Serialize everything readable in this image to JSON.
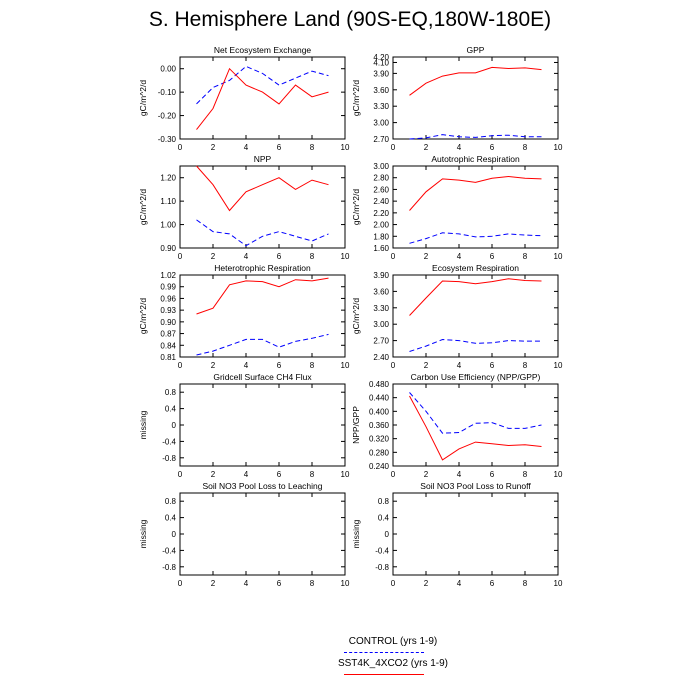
{
  "title": "S. Hemisphere Land (90S-EQ,180W-180E)",
  "legend": {
    "control": "CONTROL (yrs 1-9)",
    "sst4k": "SST4K_4XCO2 (yrs 1-9)"
  },
  "colors": {
    "control": "#0000ff",
    "sst4k": "#ff0000"
  },
  "chart_data": [
    {
      "type": "line",
      "title": "Net Ecosystem Exchange",
      "ylabel": "gC/m^2/d",
      "xlim": [
        0,
        10
      ],
      "xticks": [
        "0",
        "2",
        "4",
        "6",
        "8",
        "10"
      ],
      "ylim": [
        -0.3,
        0.05
      ],
      "yticks": [
        "0.00",
        "-0.10",
        "-0.20",
        "-0.30"
      ],
      "x": [
        1,
        2,
        3,
        4,
        5,
        6,
        7,
        8,
        9
      ],
      "series": [
        {
          "name": "CONTROL (yrs 1-9)",
          "values": [
            -0.15,
            -0.08,
            -0.05,
            0.01,
            -0.02,
            -0.07,
            -0.04,
            -0.01,
            -0.03
          ]
        },
        {
          "name": "SST4K_4XCO2 (yrs 1-9)",
          "values": [
            -0.26,
            -0.17,
            0.0,
            -0.07,
            -0.1,
            -0.15,
            -0.07,
            -0.12,
            -0.1
          ]
        }
      ]
    },
    {
      "type": "line",
      "title": "GPP",
      "ylabel": "gC/m^2/d",
      "xlim": [
        0,
        10
      ],
      "xticks": [
        "0",
        "2",
        "4",
        "6",
        "8",
        "10"
      ],
      "ylim": [
        2.7,
        4.2
      ],
      "yticks": [
        "4.20",
        "4.10",
        "3.90",
        "3.60",
        "3.30",
        "3.00",
        "2.70"
      ],
      "x": [
        1,
        2,
        3,
        4,
        5,
        6,
        7,
        8,
        9
      ],
      "series": [
        {
          "name": "CONTROL (yrs 1-9)",
          "values": [
            2.7,
            2.72,
            2.78,
            2.74,
            2.73,
            2.76,
            2.77,
            2.74,
            2.74
          ]
        },
        {
          "name": "SST4K_4XCO2 (yrs 1-9)",
          "values": [
            3.5,
            3.72,
            3.85,
            3.91,
            3.91,
            4.01,
            3.99,
            4.0,
            3.97
          ]
        }
      ]
    },
    {
      "type": "line",
      "title": "NPP",
      "ylabel": "gC/m^2/d",
      "xlim": [
        0,
        10
      ],
      "xticks": [
        "0",
        "2",
        "4",
        "6",
        "8",
        "10"
      ],
      "ylim": [
        0.9,
        1.25
      ],
      "yticks": [
        "1.20",
        "1.10",
        "1.00",
        "0.90"
      ],
      "x": [
        1,
        2,
        3,
        4,
        5,
        6,
        7,
        8,
        9
      ],
      "series": [
        {
          "name": "CONTROL (yrs 1-9)",
          "values": [
            1.02,
            0.97,
            0.96,
            0.91,
            0.95,
            0.97,
            0.95,
            0.93,
            0.96
          ]
        },
        {
          "name": "SST4K_4XCO2 (yrs 1-9)",
          "values": [
            1.25,
            1.17,
            1.06,
            1.14,
            1.17,
            1.2,
            1.15,
            1.19,
            1.17
          ]
        }
      ]
    },
    {
      "type": "line",
      "title": "Autotrophic Respiration",
      "ylabel": "gC/m^2/d",
      "xlim": [
        0,
        10
      ],
      "xticks": [
        "0",
        "2",
        "4",
        "6",
        "8",
        "10"
      ],
      "ylim": [
        1.6,
        3.0
      ],
      "yticks": [
        "3.00",
        "2.80",
        "2.60",
        "2.40",
        "2.20",
        "2.00",
        "1.80",
        "1.60"
      ],
      "x": [
        1,
        2,
        3,
        4,
        5,
        6,
        7,
        8,
        9
      ],
      "series": [
        {
          "name": "CONTROL (yrs 1-9)",
          "values": [
            1.68,
            1.76,
            1.86,
            1.84,
            1.79,
            1.8,
            1.84,
            1.82,
            1.81
          ]
        },
        {
          "name": "SST4K_4XCO2 (yrs 1-9)",
          "values": [
            2.24,
            2.56,
            2.78,
            2.76,
            2.72,
            2.79,
            2.82,
            2.79,
            2.78
          ]
        }
      ]
    },
    {
      "type": "line",
      "title": "Heterotrophic Respiration",
      "ylabel": "gC/m^2/d",
      "xlim": [
        0,
        10
      ],
      "xticks": [
        "0",
        "2",
        "4",
        "6",
        "8",
        "10"
      ],
      "ylim": [
        0.81,
        1.02
      ],
      "yticks": [
        "1.02",
        "0.99",
        "0.96",
        "0.93",
        "0.90",
        "0.87",
        "0.84",
        "0.81"
      ],
      "x": [
        1,
        2,
        3,
        4,
        5,
        6,
        7,
        8,
        9
      ],
      "series": [
        {
          "name": "CONTROL (yrs 1-9)",
          "values": [
            0.815,
            0.825,
            0.84,
            0.855,
            0.855,
            0.835,
            0.85,
            0.858,
            0.868
          ]
        },
        {
          "name": "SST4K_4XCO2 (yrs 1-9)",
          "values": [
            0.92,
            0.935,
            0.995,
            1.005,
            1.003,
            0.99,
            1.008,
            1.005,
            1.012
          ]
        }
      ]
    },
    {
      "type": "line",
      "title": "Ecosystem Respiration",
      "ylabel": "gC/m^2/d",
      "xlim": [
        0,
        10
      ],
      "xticks": [
        "0",
        "2",
        "4",
        "6",
        "8",
        "10"
      ],
      "ylim": [
        2.4,
        3.9
      ],
      "yticks": [
        "3.90",
        "3.60",
        "3.30",
        "3.00",
        "2.70",
        "2.40"
      ],
      "x": [
        1,
        2,
        3,
        4,
        5,
        6,
        7,
        8,
        9
      ],
      "series": [
        {
          "name": "CONTROL (yrs 1-9)",
          "values": [
            2.5,
            2.6,
            2.72,
            2.7,
            2.65,
            2.66,
            2.7,
            2.69,
            2.69
          ]
        },
        {
          "name": "SST4K_4XCO2 (yrs 1-9)",
          "values": [
            3.16,
            3.48,
            3.79,
            3.78,
            3.74,
            3.78,
            3.83,
            3.8,
            3.79
          ]
        }
      ]
    },
    {
      "type": "line",
      "title": "Gridcell Surface CH4 Flux",
      "ylabel": "missing",
      "xlim": [
        0,
        10
      ],
      "xticks": [
        "0",
        "2",
        "4",
        "6",
        "8",
        "10"
      ],
      "ylim": [
        -1.0,
        1.0
      ],
      "yticks": [
        "0.8",
        "0.4",
        "0",
        "-0.4",
        "-0.8"
      ],
      "x": [],
      "series": []
    },
    {
      "type": "line",
      "title": "Carbon Use Efficiency (NPP/GPP)",
      "ylabel": "NPP/GPP",
      "xlim": [
        0,
        10
      ],
      "xticks": [
        "0",
        "2",
        "4",
        "6",
        "8",
        "10"
      ],
      "ylim": [
        0.24,
        0.48
      ],
      "yticks": [
        "0.480",
        "0.440",
        "0.400",
        "0.360",
        "0.320",
        "0.280",
        "0.240"
      ],
      "x": [
        1,
        2,
        3,
        4,
        5,
        6,
        7,
        8,
        9
      ],
      "series": [
        {
          "name": "CONTROL (yrs 1-9)",
          "values": [
            0.455,
            0.4,
            0.336,
            0.338,
            0.365,
            0.367,
            0.35,
            0.35,
            0.36
          ]
        },
        {
          "name": "SST4K_4XCO2 (yrs 1-9)",
          "values": [
            0.445,
            0.355,
            0.258,
            0.29,
            0.31,
            0.305,
            0.3,
            0.302,
            0.297
          ]
        }
      ]
    },
    {
      "type": "line",
      "title": "Soil NO3 Pool Loss to Leaching",
      "ylabel": "missing",
      "xlim": [
        0,
        10
      ],
      "xticks": [
        "0",
        "2",
        "4",
        "6",
        "8",
        "10"
      ],
      "ylim": [
        -1.0,
        1.0
      ],
      "yticks": [
        "0.8",
        "0.4",
        "0",
        "-0.4",
        "-0.8"
      ],
      "x": [],
      "series": []
    },
    {
      "type": "line",
      "title": "Soil NO3 Pool Loss to Runoff",
      "ylabel": "missing",
      "xlim": [
        0,
        10
      ],
      "xticks": [
        "0",
        "2",
        "4",
        "6",
        "8",
        "10"
      ],
      "ylim": [
        -1.0,
        1.0
      ],
      "yticks": [
        "0.8",
        "0.4",
        "0",
        "-0.4",
        "-0.8"
      ],
      "x": [],
      "series": []
    }
  ]
}
